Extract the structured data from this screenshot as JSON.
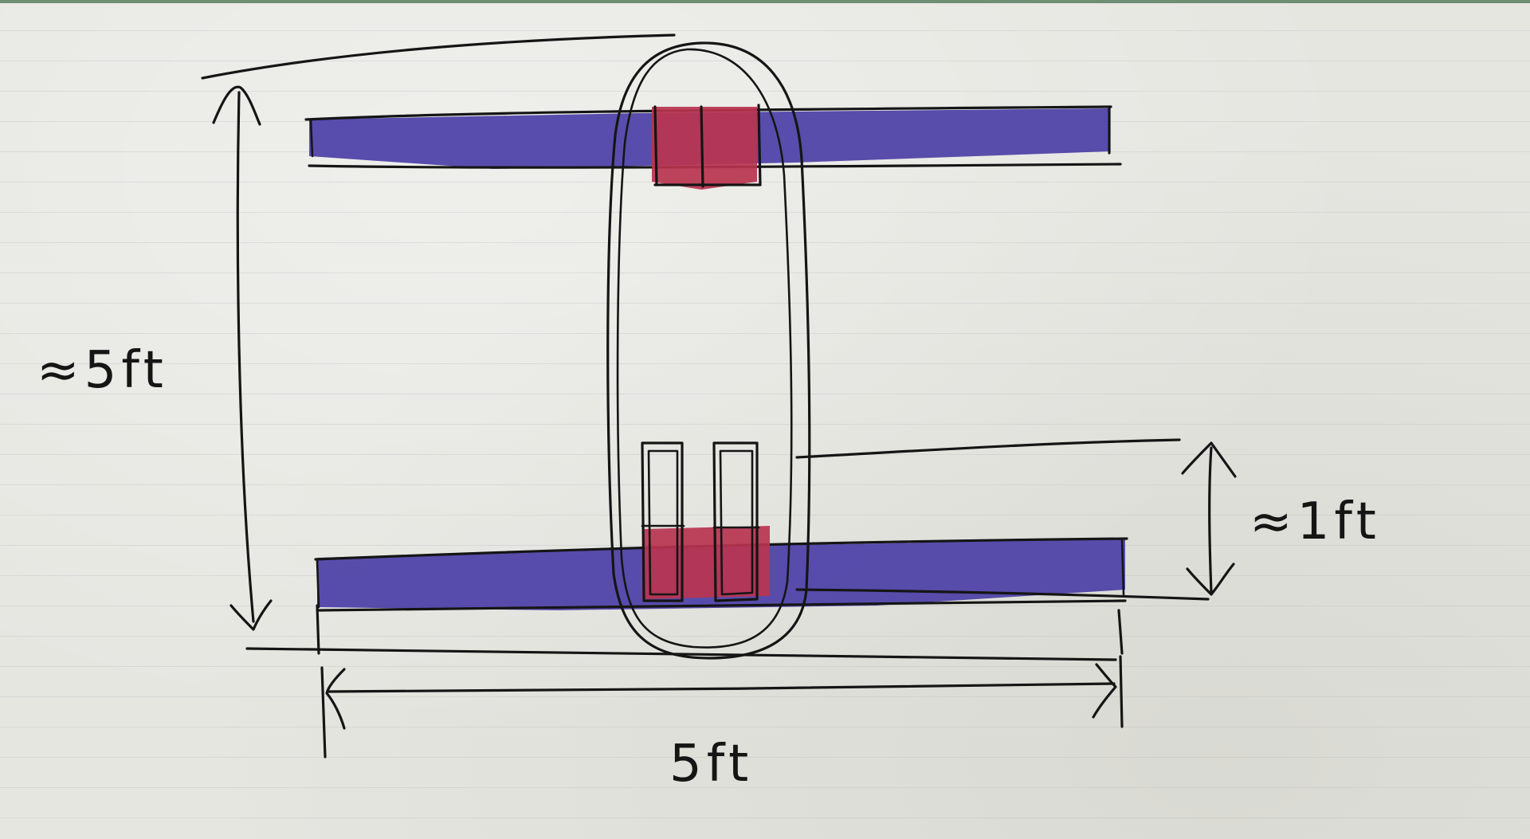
{
  "diagram": {
    "labels": {
      "height_top": "≈5ft",
      "gap_right": "≈1ft",
      "width_bottom": "5ft"
    },
    "colors": {
      "bar_blue": "#4b3fa6",
      "block_red": "#b9344f",
      "ink": "#151515",
      "paper": "#e6e6e1"
    }
  }
}
